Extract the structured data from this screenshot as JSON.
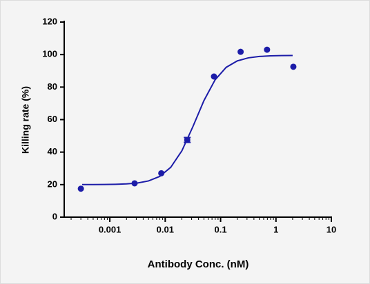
{
  "chart_data": {
    "type": "scatter",
    "xlabel": "Antibody Conc. (nM)",
    "ylabel": "Killing rate (%)",
    "xscale": "log",
    "xlim": [
      0.00015,
      10
    ],
    "ylim": [
      0,
      120
    ],
    "xticks": [
      0.001,
      0.01,
      0.1,
      1,
      10
    ],
    "yticks": [
      0,
      20,
      40,
      60,
      80,
      100,
      120
    ],
    "series": [
      {
        "type": "scatter",
        "color": "#1c1ca8",
        "x": [
          0.0003,
          0.0028,
          0.0085,
          0.025,
          0.076,
          0.23,
          0.69,
          2.06
        ],
        "y": [
          17.5,
          20.8,
          27,
          47.5,
          86.5,
          101.7,
          103,
          92.5
        ],
        "errors": [
          null,
          null,
          null,
          1.5,
          null,
          null,
          null,
          null
        ]
      },
      {
        "type": "line",
        "color": "#1c1ca8",
        "x": [
          0.000316,
          0.000501,
          0.000794,
          0.00126,
          0.002,
          0.00316,
          0.00501,
          0.00794,
          0.0126,
          0.02,
          0.0316,
          0.0501,
          0.0794,
          0.126,
          0.2,
          0.316,
          0.501,
          0.794,
          1.26,
          2
        ],
        "y": [
          20.02,
          20.04,
          20.09,
          20.19,
          20.44,
          21.01,
          22.28,
          25.03,
          30.66,
          40.81,
          55.65,
          71.72,
          84.42,
          92.14,
          96.1,
          97.98,
          98.83,
          99.21,
          99.37,
          99.44
        ]
      }
    ]
  }
}
